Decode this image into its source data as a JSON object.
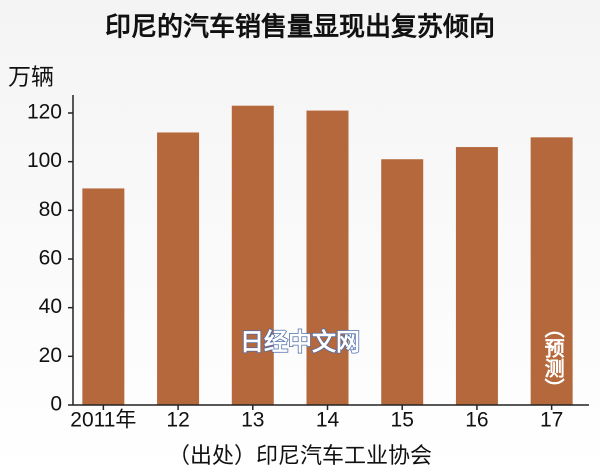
{
  "chart_data": {
    "type": "bar",
    "title": "印尼的汽车销售量显现出复苏倾向",
    "y_label": "万辆",
    "categories": [
      "2011年",
      "12",
      "13",
      "14",
      "15",
      "16",
      "17"
    ],
    "values": [
      89,
      112,
      123,
      121,
      101,
      106,
      110
    ],
    "color": "#b5683c",
    "ylim": [
      0,
      120
    ],
    "yticks": [
      0,
      20,
      40,
      60,
      80,
      100,
      120
    ],
    "annotation": "（预测）",
    "source": "（出处）印尼汽车工业协会",
    "watermark": "日经中文网"
  }
}
